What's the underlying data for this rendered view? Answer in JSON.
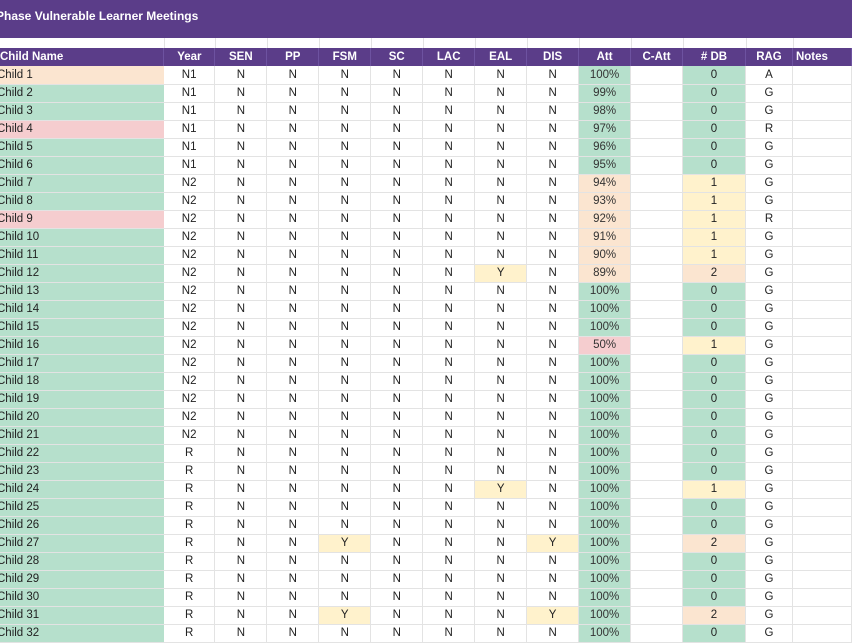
{
  "title": "Phase Vulnerable Learner Meetings",
  "columns": [
    "Child Name",
    "Year",
    "SEN",
    "PP",
    "FSM",
    "SC",
    "LAC",
    "EAL",
    "DIS",
    "Att",
    "C-Att",
    "# DB",
    "RAG",
    "Notes"
  ],
  "colors": {
    "header": "#5b3d89",
    "green": "#b6e0cc",
    "orange": "#fbe5d0",
    "red": "#f5cdcf",
    "yellow": "#fff2cc"
  },
  "rows": [
    {
      "name": "Child 1",
      "year": "N1",
      "sen": "N",
      "pp": "N",
      "fsm": "N",
      "sc": "N",
      "lac": "N",
      "eal": "N",
      "dis": "N",
      "att": "100%",
      "catt": "",
      "db": "0",
      "rag": "A",
      "notes": ""
    },
    {
      "name": "Child 2",
      "year": "N1",
      "sen": "N",
      "pp": "N",
      "fsm": "N",
      "sc": "N",
      "lac": "N",
      "eal": "N",
      "dis": "N",
      "att": "99%",
      "catt": "",
      "db": "0",
      "rag": "G",
      "notes": ""
    },
    {
      "name": "Child 3",
      "year": "N1",
      "sen": "N",
      "pp": "N",
      "fsm": "N",
      "sc": "N",
      "lac": "N",
      "eal": "N",
      "dis": "N",
      "att": "98%",
      "catt": "",
      "db": "0",
      "rag": "G",
      "notes": ""
    },
    {
      "name": "Child 4",
      "year": "N1",
      "sen": "N",
      "pp": "N",
      "fsm": "N",
      "sc": "N",
      "lac": "N",
      "eal": "N",
      "dis": "N",
      "att": "97%",
      "catt": "",
      "db": "0",
      "rag": "R",
      "notes": ""
    },
    {
      "name": "Child 5",
      "year": "N1",
      "sen": "N",
      "pp": "N",
      "fsm": "N",
      "sc": "N",
      "lac": "N",
      "eal": "N",
      "dis": "N",
      "att": "96%",
      "catt": "",
      "db": "0",
      "rag": "G",
      "notes": ""
    },
    {
      "name": "Child 6",
      "year": "N1",
      "sen": "N",
      "pp": "N",
      "fsm": "N",
      "sc": "N",
      "lac": "N",
      "eal": "N",
      "dis": "N",
      "att": "95%",
      "catt": "",
      "db": "0",
      "rag": "G",
      "notes": ""
    },
    {
      "name": "Child 7",
      "year": "N2",
      "sen": "N",
      "pp": "N",
      "fsm": "N",
      "sc": "N",
      "lac": "N",
      "eal": "N",
      "dis": "N",
      "att": "94%",
      "catt": "",
      "db": "1",
      "rag": "G",
      "notes": ""
    },
    {
      "name": "Child 8",
      "year": "N2",
      "sen": "N",
      "pp": "N",
      "fsm": "N",
      "sc": "N",
      "lac": "N",
      "eal": "N",
      "dis": "N",
      "att": "93%",
      "catt": "",
      "db": "1",
      "rag": "G",
      "notes": ""
    },
    {
      "name": "Child 9",
      "year": "N2",
      "sen": "N",
      "pp": "N",
      "fsm": "N",
      "sc": "N",
      "lac": "N",
      "eal": "N",
      "dis": "N",
      "att": "92%",
      "catt": "",
      "db": "1",
      "rag": "R",
      "notes": ""
    },
    {
      "name": "Child 10",
      "year": "N2",
      "sen": "N",
      "pp": "N",
      "fsm": "N",
      "sc": "N",
      "lac": "N",
      "eal": "N",
      "dis": "N",
      "att": "91%",
      "catt": "",
      "db": "1",
      "rag": "G",
      "notes": ""
    },
    {
      "name": "Child 11",
      "year": "N2",
      "sen": "N",
      "pp": "N",
      "fsm": "N",
      "sc": "N",
      "lac": "N",
      "eal": "N",
      "dis": "N",
      "att": "90%",
      "catt": "",
      "db": "1",
      "rag": "G",
      "notes": ""
    },
    {
      "name": "Child 12",
      "year": "N2",
      "sen": "N",
      "pp": "N",
      "fsm": "N",
      "sc": "N",
      "lac": "N",
      "eal": "Y",
      "dis": "N",
      "att": "89%",
      "catt": "",
      "db": "2",
      "rag": "G",
      "notes": ""
    },
    {
      "name": "Child 13",
      "year": "N2",
      "sen": "N",
      "pp": "N",
      "fsm": "N",
      "sc": "N",
      "lac": "N",
      "eal": "N",
      "dis": "N",
      "att": "100%",
      "catt": "",
      "db": "0",
      "rag": "G",
      "notes": ""
    },
    {
      "name": "Child 14",
      "year": "N2",
      "sen": "N",
      "pp": "N",
      "fsm": "N",
      "sc": "N",
      "lac": "N",
      "eal": "N",
      "dis": "N",
      "att": "100%",
      "catt": "",
      "db": "0",
      "rag": "G",
      "notes": ""
    },
    {
      "name": "Child 15",
      "year": "N2",
      "sen": "N",
      "pp": "N",
      "fsm": "N",
      "sc": "N",
      "lac": "N",
      "eal": "N",
      "dis": "N",
      "att": "100%",
      "catt": "",
      "db": "0",
      "rag": "G",
      "notes": ""
    },
    {
      "name": "Child 16",
      "year": "N2",
      "sen": "N",
      "pp": "N",
      "fsm": "N",
      "sc": "N",
      "lac": "N",
      "eal": "N",
      "dis": "N",
      "att": "50%",
      "catt": "",
      "db": "1",
      "rag": "G",
      "notes": ""
    },
    {
      "name": "Child 17",
      "year": "N2",
      "sen": "N",
      "pp": "N",
      "fsm": "N",
      "sc": "N",
      "lac": "N",
      "eal": "N",
      "dis": "N",
      "att": "100%",
      "catt": "",
      "db": "0",
      "rag": "G",
      "notes": ""
    },
    {
      "name": "Child 18",
      "year": "N2",
      "sen": "N",
      "pp": "N",
      "fsm": "N",
      "sc": "N",
      "lac": "N",
      "eal": "N",
      "dis": "N",
      "att": "100%",
      "catt": "",
      "db": "0",
      "rag": "G",
      "notes": ""
    },
    {
      "name": "Child 19",
      "year": "N2",
      "sen": "N",
      "pp": "N",
      "fsm": "N",
      "sc": "N",
      "lac": "N",
      "eal": "N",
      "dis": "N",
      "att": "100%",
      "catt": "",
      "db": "0",
      "rag": "G",
      "notes": ""
    },
    {
      "name": "Child 20",
      "year": "N2",
      "sen": "N",
      "pp": "N",
      "fsm": "N",
      "sc": "N",
      "lac": "N",
      "eal": "N",
      "dis": "N",
      "att": "100%",
      "catt": "",
      "db": "0",
      "rag": "G",
      "notes": ""
    },
    {
      "name": "Child 21",
      "year": "N2",
      "sen": "N",
      "pp": "N",
      "fsm": "N",
      "sc": "N",
      "lac": "N",
      "eal": "N",
      "dis": "N",
      "att": "100%",
      "catt": "",
      "db": "0",
      "rag": "G",
      "notes": ""
    },
    {
      "name": "Child 22",
      "year": "R",
      "sen": "N",
      "pp": "N",
      "fsm": "N",
      "sc": "N",
      "lac": "N",
      "eal": "N",
      "dis": "N",
      "att": "100%",
      "catt": "",
      "db": "0",
      "rag": "G",
      "notes": ""
    },
    {
      "name": "Child 23",
      "year": "R",
      "sen": "N",
      "pp": "N",
      "fsm": "N",
      "sc": "N",
      "lac": "N",
      "eal": "N",
      "dis": "N",
      "att": "100%",
      "catt": "",
      "db": "0",
      "rag": "G",
      "notes": ""
    },
    {
      "name": "Child 24",
      "year": "R",
      "sen": "N",
      "pp": "N",
      "fsm": "N",
      "sc": "N",
      "lac": "N",
      "eal": "Y",
      "dis": "N",
      "att": "100%",
      "catt": "",
      "db": "1",
      "rag": "G",
      "notes": ""
    },
    {
      "name": "Child 25",
      "year": "R",
      "sen": "N",
      "pp": "N",
      "fsm": "N",
      "sc": "N",
      "lac": "N",
      "eal": "N",
      "dis": "N",
      "att": "100%",
      "catt": "",
      "db": "0",
      "rag": "G",
      "notes": ""
    },
    {
      "name": "Child 26",
      "year": "R",
      "sen": "N",
      "pp": "N",
      "fsm": "N",
      "sc": "N",
      "lac": "N",
      "eal": "N",
      "dis": "N",
      "att": "100%",
      "catt": "",
      "db": "0",
      "rag": "G",
      "notes": ""
    },
    {
      "name": "Child 27",
      "year": "R",
      "sen": "N",
      "pp": "N",
      "fsm": "Y",
      "sc": "N",
      "lac": "N",
      "eal": "N",
      "dis": "Y",
      "att": "100%",
      "catt": "",
      "db": "2",
      "rag": "G",
      "notes": ""
    },
    {
      "name": "Child 28",
      "year": "R",
      "sen": "N",
      "pp": "N",
      "fsm": "N",
      "sc": "N",
      "lac": "N",
      "eal": "N",
      "dis": "N",
      "att": "100%",
      "catt": "",
      "db": "0",
      "rag": "G",
      "notes": ""
    },
    {
      "name": "Child 29",
      "year": "R",
      "sen": "N",
      "pp": "N",
      "fsm": "N",
      "sc": "N",
      "lac": "N",
      "eal": "N",
      "dis": "N",
      "att": "100%",
      "catt": "",
      "db": "0",
      "rag": "G",
      "notes": ""
    },
    {
      "name": "Child 30",
      "year": "R",
      "sen": "N",
      "pp": "N",
      "fsm": "N",
      "sc": "N",
      "lac": "N",
      "eal": "N",
      "dis": "N",
      "att": "100%",
      "catt": "",
      "db": "0",
      "rag": "G",
      "notes": ""
    },
    {
      "name": "Child 31",
      "year": "R",
      "sen": "N",
      "pp": "N",
      "fsm": "Y",
      "sc": "N",
      "lac": "N",
      "eal": "N",
      "dis": "Y",
      "att": "100%",
      "catt": "",
      "db": "2",
      "rag": "G",
      "notes": ""
    },
    {
      "name": "Child 32",
      "year": "R",
      "sen": "N",
      "pp": "N",
      "fsm": "N",
      "sc": "N",
      "lac": "N",
      "eal": "N",
      "dis": "N",
      "att": "100%",
      "catt": "",
      "db": "0",
      "rag": "G",
      "notes": ""
    }
  ]
}
